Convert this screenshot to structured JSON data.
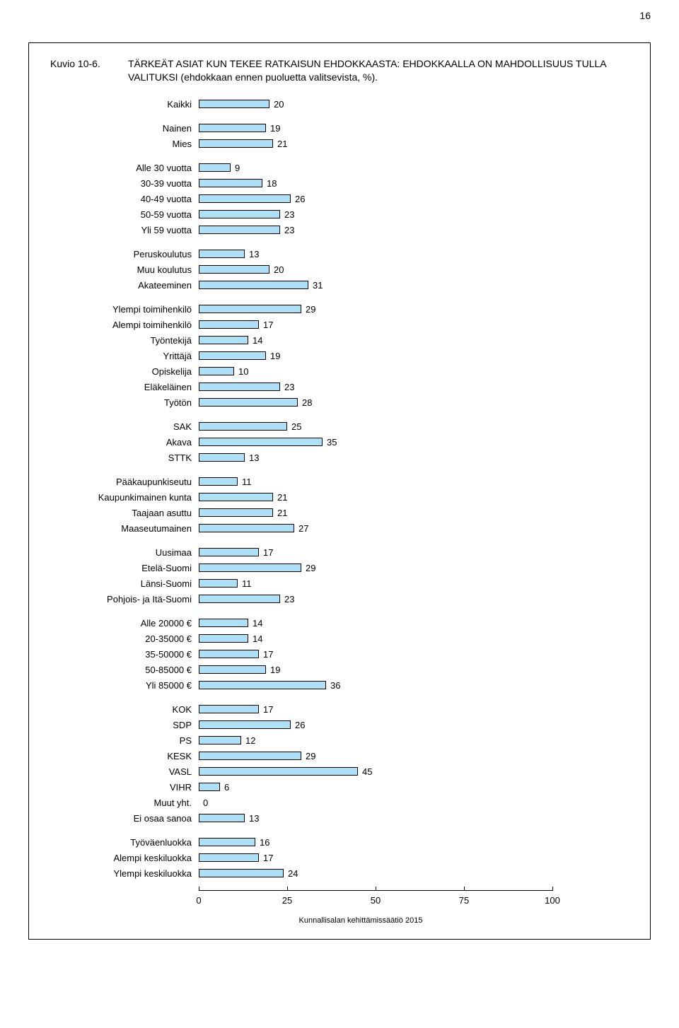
{
  "page_number": "16",
  "figure_label": "Kuvio 10-6.",
  "figure_title": "TÄRKEÄT ASIAT KUN TEKEE RATKAISUN EHDOKKAASTA: EHDOKKAALLA ON MAHDOLLISUUS TULLA VALITUKSI (ehdokkaan ennen puoluetta valitsevista, %).",
  "chart": {
    "type": "bar",
    "x_max": 100,
    "x_ticks": [
      0,
      25,
      50,
      75,
      100
    ],
    "bar_color": "#b0e0f5",
    "bar_border": "#000000",
    "groups": [
      {
        "rows": [
          {
            "label": "Kaikki",
            "value": 20
          }
        ]
      },
      {
        "rows": [
          {
            "label": "Nainen",
            "value": 19
          },
          {
            "label": "Mies",
            "value": 21
          }
        ]
      },
      {
        "rows": [
          {
            "label": "Alle 30 vuotta",
            "value": 9
          },
          {
            "label": "30-39 vuotta",
            "value": 18
          },
          {
            "label": "40-49 vuotta",
            "value": 26
          },
          {
            "label": "50-59 vuotta",
            "value": 23
          },
          {
            "label": "Yli 59 vuotta",
            "value": 23
          }
        ]
      },
      {
        "rows": [
          {
            "label": "Peruskoulutus",
            "value": 13
          },
          {
            "label": "Muu koulutus",
            "value": 20
          },
          {
            "label": "Akateeminen",
            "value": 31
          }
        ]
      },
      {
        "rows": [
          {
            "label": "Ylempi toimihenkilö",
            "value": 29
          },
          {
            "label": "Alempi toimihenkilö",
            "value": 17
          },
          {
            "label": "Työntekijä",
            "value": 14
          },
          {
            "label": "Yrittäjä",
            "value": 19
          },
          {
            "label": "Opiskelija",
            "value": 10
          },
          {
            "label": "Eläkeläinen",
            "value": 23
          },
          {
            "label": "Työtön",
            "value": 28
          }
        ]
      },
      {
        "rows": [
          {
            "label": "SAK",
            "value": 25
          },
          {
            "label": "Akava",
            "value": 35
          },
          {
            "label": "STTK",
            "value": 13
          }
        ]
      },
      {
        "rows": [
          {
            "label": "Pääkaupunkiseutu",
            "value": 11
          },
          {
            "label": "Kaupunkimainen kunta",
            "value": 21
          },
          {
            "label": "Taajaan asuttu",
            "value": 21
          },
          {
            "label": "Maaseutumainen",
            "value": 27
          }
        ]
      },
      {
        "rows": [
          {
            "label": "Uusimaa",
            "value": 17
          },
          {
            "label": "Etelä-Suomi",
            "value": 29
          },
          {
            "label": "Länsi-Suomi",
            "value": 11
          },
          {
            "label": "Pohjois- ja Itä-Suomi",
            "value": 23
          }
        ]
      },
      {
        "rows": [
          {
            "label": "Alle 20000 €",
            "value": 14
          },
          {
            "label": "20-35000 €",
            "value": 14
          },
          {
            "label": "35-50000 €",
            "value": 17
          },
          {
            "label": "50-85000 €",
            "value": 19
          },
          {
            "label": "Yli 85000 €",
            "value": 36
          }
        ]
      },
      {
        "rows": [
          {
            "label": "KOK",
            "value": 17
          },
          {
            "label": "SDP",
            "value": 26
          },
          {
            "label": "PS",
            "value": 12
          },
          {
            "label": "KESK",
            "value": 29
          },
          {
            "label": "VASL",
            "value": 45
          },
          {
            "label": "VIHR",
            "value": 6
          },
          {
            "label": "Muut yht.",
            "value": 0
          },
          {
            "label": "Ei osaa sanoa",
            "value": 13
          }
        ]
      },
      {
        "rows": [
          {
            "label": "Työväenluokka",
            "value": 16
          },
          {
            "label": "Alempi keskiluokka",
            "value": 17
          },
          {
            "label": "Ylempi keskiluokka",
            "value": 24
          }
        ]
      }
    ]
  },
  "footer": "Kunnallisalan kehittämissäätiö 2015"
}
